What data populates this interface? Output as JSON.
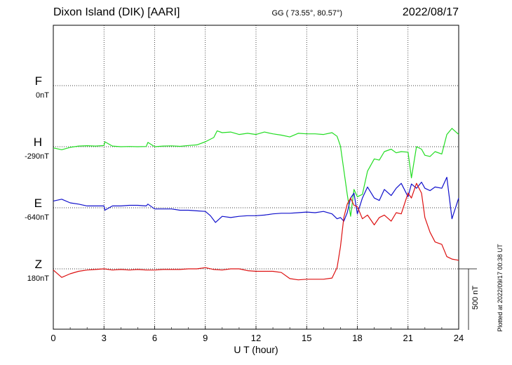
{
  "header": {
    "station": "Dixon Island (DIK)  [AARI]",
    "coords": "GG ( 73.55°,  80.57°)",
    "date": "2022/08/17"
  },
  "traces": [
    {
      "name": "F",
      "baseline": "0nT",
      "color": "#f0b000"
    },
    {
      "name": "H",
      "baseline": "-290nT",
      "color": "#22dd22"
    },
    {
      "name": "E",
      "baseline": "-640nT",
      "color": "#1010cc"
    },
    {
      "name": "Z",
      "baseline": "180nT",
      "color": "#dd1010"
    }
  ],
  "scale_bar": {
    "label": "500 nT",
    "value": 500
  },
  "plotted_note": "Plotted at 2022/09/17 00:38 UT",
  "chart_data": {
    "type": "line",
    "xlabel": "U T (hour)",
    "xlim": [
      0,
      24
    ],
    "x_ticks": [
      "0",
      "3",
      "6",
      "9",
      "12",
      "15",
      "18",
      "21",
      "24"
    ],
    "y_units": "nT",
    "series": [
      {
        "name": "F",
        "color": "#f0b000",
        "baseline": 0,
        "x": [],
        "values": []
      },
      {
        "name": "H",
        "color": "#22dd22",
        "baseline": -290,
        "x": [
          0,
          0.5,
          1,
          1.5,
          2,
          2.5,
          3,
          3.05,
          3.5,
          4,
          4.5,
          5,
          5.5,
          5.6,
          6,
          6.5,
          7,
          7.5,
          8,
          8.5,
          9,
          9.5,
          9.7,
          10,
          10.5,
          11,
          11.5,
          12,
          12.5,
          13,
          13.5,
          14,
          14.5,
          15,
          15.5,
          16,
          16.5,
          16.8,
          17,
          17.2,
          17.4,
          17.6,
          17.8,
          18,
          18.3,
          18.6,
          19,
          19.3,
          19.6,
          20,
          20.3,
          20.6,
          21,
          21.2,
          21.5,
          21.8,
          22,
          22.3,
          22.6,
          23,
          23.3,
          23.6,
          24
        ],
        "values": [
          -300,
          -315,
          -295,
          -285,
          -282,
          -285,
          -280,
          -250,
          -285,
          -290,
          -288,
          -290,
          -288,
          -255,
          -290,
          -285,
          -283,
          -287,
          -280,
          -275,
          -250,
          -215,
          -160,
          -175,
          -170,
          -190,
          -180,
          -190,
          -170,
          -185,
          -195,
          -210,
          -180,
          -185,
          -185,
          -190,
          -175,
          -205,
          -285,
          -480,
          -680,
          -860,
          -640,
          -700,
          -680,
          -490,
          -390,
          -400,
          -330,
          -310,
          -340,
          -330,
          -335,
          -545,
          -290,
          -310,
          -360,
          -370,
          -330,
          -350,
          -190,
          -140,
          -190
        ]
      },
      {
        "name": "E",
        "color": "#1010cc",
        "baseline": -640,
        "x": [
          0,
          0.5,
          1,
          1.5,
          2,
          2.5,
          3,
          3.05,
          3.5,
          4,
          4.5,
          5,
          5.5,
          5.6,
          6,
          6.5,
          7,
          7.5,
          8,
          8.5,
          9,
          9.3,
          9.6,
          10,
          10.5,
          11,
          11.5,
          12,
          12.5,
          13,
          13.5,
          14,
          14.5,
          15,
          15.5,
          16,
          16.5,
          16.8,
          17,
          17.2,
          17.4,
          17.6,
          17.8,
          18,
          18.3,
          18.6,
          19,
          19.3,
          19.6,
          20,
          20.3,
          20.6,
          21,
          21.2,
          21.5,
          21.8,
          22,
          22.3,
          22.6,
          23,
          23.3,
          23.6,
          24
        ],
        "values": [
          -585,
          -570,
          -600,
          -610,
          -625,
          -625,
          -625,
          -660,
          -625,
          -625,
          -620,
          -620,
          -625,
          -610,
          -650,
          -650,
          -650,
          -660,
          -660,
          -665,
          -670,
          -705,
          -760,
          -710,
          -720,
          -710,
          -705,
          -705,
          -700,
          -690,
          -685,
          -685,
          -680,
          -675,
          -680,
          -670,
          -690,
          -730,
          -720,
          -750,
          -680,
          -560,
          -520,
          -690,
          -560,
          -470,
          -560,
          -580,
          -490,
          -540,
          -480,
          -440,
          -550,
          -445,
          -480,
          -430,
          -480,
          -500,
          -470,
          -480,
          -390,
          -730,
          -560
        ]
      },
      {
        "name": "Z",
        "color": "#dd1010",
        "baseline": 180,
        "x": [
          0,
          0.5,
          1,
          1.5,
          2,
          2.5,
          3,
          3.5,
          4,
          4.5,
          5,
          5.5,
          6,
          6.5,
          7,
          7.5,
          8,
          8.5,
          9,
          9.5,
          10,
          10.5,
          11,
          11.5,
          12,
          12.5,
          13,
          13.5,
          14,
          14.5,
          15,
          15.5,
          16,
          16.5,
          16.8,
          17,
          17.2,
          17.4,
          17.6,
          17.8,
          18,
          18.3,
          18.6,
          19,
          19.3,
          19.6,
          20,
          20.3,
          20.6,
          21,
          21.2,
          21.5,
          21.8,
          22,
          22.3,
          22.6,
          23,
          23.3,
          23.6,
          24
        ],
        "values": [
          170,
          110,
          140,
          160,
          170,
          175,
          180,
          170,
          175,
          170,
          175,
          170,
          170,
          175,
          175,
          175,
          180,
          180,
          190,
          175,
          170,
          180,
          180,
          165,
          160,
          160,
          160,
          150,
          100,
          90,
          95,
          95,
          95,
          105,
          190,
          360,
          600,
          710,
          760,
          700,
          690,
          590,
          620,
          540,
          600,
          620,
          570,
          640,
          630,
          800,
          760,
          880,
          800,
          600,
          480,
          400,
          380,
          280,
          260,
          250
        ]
      }
    ]
  }
}
